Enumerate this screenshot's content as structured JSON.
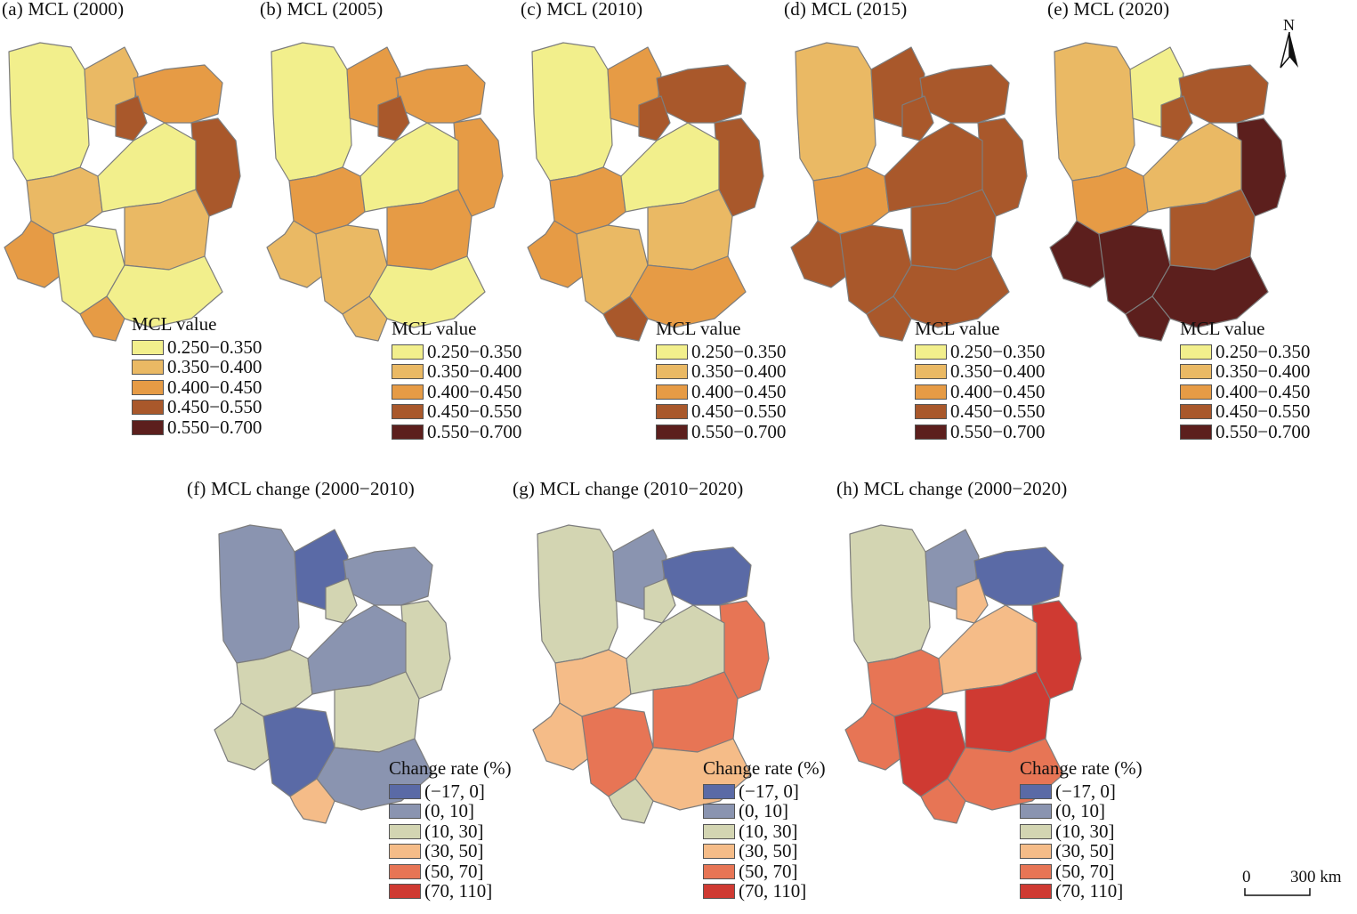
{
  "mcl_panels": [
    {
      "title": "(a) MCL (2000)",
      "legend_title": "MCL value",
      "fills": [
        "#f2ef8c",
        "#eab964",
        "#e69b45",
        "#a9582b",
        "#a9582b",
        "#eab964",
        "#f2ef8c",
        "#e69b45",
        "#f2ef8c",
        "#eab964",
        "#f2ef8c",
        "#e69b45"
      ]
    },
    {
      "title": "(b) MCL (2005)",
      "legend_title": "MCL value",
      "fills": [
        "#f2ef8c",
        "#e69b45",
        "#e69b45",
        "#a9582b",
        "#e69b45",
        "#e69b45",
        "#f2ef8c",
        "#eab964",
        "#eab964",
        "#e69b45",
        "#f2ef8c",
        "#eab964"
      ]
    },
    {
      "title": "(c) MCL (2010)",
      "legend_title": "MCL value",
      "fills": [
        "#f2ef8c",
        "#e69b45",
        "#a9582b",
        "#a9582b",
        "#a9582b",
        "#e69b45",
        "#f2ef8c",
        "#e69b45",
        "#eab964",
        "#eab964",
        "#e69b45",
        "#a9582b"
      ]
    },
    {
      "title": "(d) MCL (2015)",
      "legend_title": "MCL value",
      "fills": [
        "#eab964",
        "#a9582b",
        "#a9582b",
        "#a9582b",
        "#a9582b",
        "#e69b45",
        "#a9582b",
        "#a9582b",
        "#a9582b",
        "#a9582b",
        "#a9582b",
        "#a9582b"
      ]
    },
    {
      "title": "(e) MCL (2020)",
      "legend_title": "MCL value",
      "fills": [
        "#eab964",
        "#f2ef8c",
        "#a9582b",
        "#a9582b",
        "#5c1f1d",
        "#e69b45",
        "#eab964",
        "#5c1f1d",
        "#5c1f1d",
        "#a9582b",
        "#5c1f1d",
        "#5c1f1d"
      ]
    }
  ],
  "mcl_legend": {
    "labels": [
      "0.250−0.350",
      "0.350−0.400",
      "0.400−0.450",
      "0.450−0.550",
      "0.550−0.700"
    ],
    "colors": [
      "#f2ef8c",
      "#eab964",
      "#e69b45",
      "#a9582b",
      "#5c1f1d"
    ]
  },
  "change_panels": [
    {
      "title": "(f) MCL change (2000−2010)",
      "legend_title": "Change rate (%)",
      "fills": [
        "#8a94b0",
        "#5a6aa6",
        "#8a94b0",
        "#d3d5b2",
        "#d3d5b2",
        "#d3d5b2",
        "#8a94b0",
        "#d3d5b2",
        "#5a6aa6",
        "#d3d5b2",
        "#8a94b0",
        "#f5bc88"
      ]
    },
    {
      "title": "(g) MCL  change (2010−2020)",
      "legend_title": "Change rate (%)",
      "fills": [
        "#d3d5b2",
        "#8a94b0",
        "#5a6aa6",
        "#d3d5b2",
        "#e77555",
        "#f5bc88",
        "#d3d5b2",
        "#f5bc88",
        "#e77555",
        "#e77555",
        "#f5bc88",
        "#d3d5b2"
      ]
    },
    {
      "title": "(h) MCL change (2000−2020)",
      "legend_title": "Change rate (%)",
      "fills": [
        "#d3d5b2",
        "#8a94b0",
        "#5a6aa6",
        "#f5bc88",
        "#cf3a32",
        "#e77555",
        "#f5bc88",
        "#e77555",
        "#cf3a32",
        "#cf3a32",
        "#e77555",
        "#e77555"
      ]
    }
  ],
  "change_legend": {
    "labels": [
      "(−17, 0]",
      "(0, 10]",
      "(10, 30]",
      "(30, 50]",
      "(50, 70]",
      "(70, 110]"
    ],
    "colors": [
      "#5a6aa6",
      "#8a94b0",
      "#d3d5b2",
      "#f5bc88",
      "#e77555",
      "#cf3a32"
    ]
  },
  "north_label": "N",
  "scale": {
    "zero": "0",
    "distance": "300 km"
  }
}
